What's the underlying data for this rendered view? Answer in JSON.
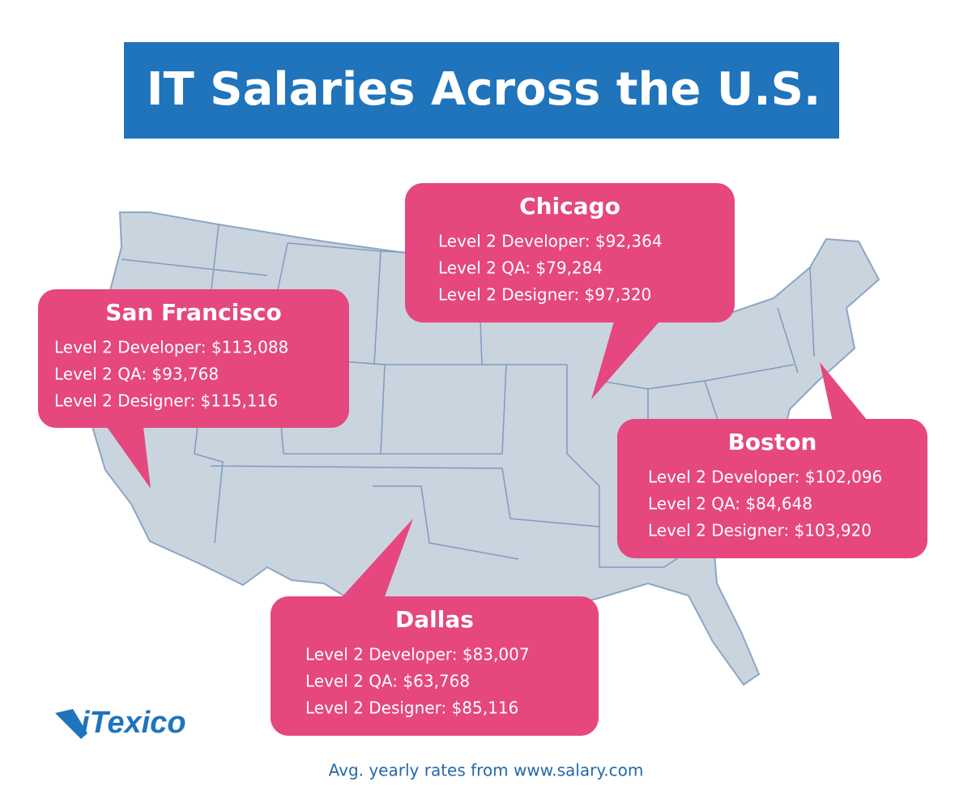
{
  "header": {
    "title": "IT Salaries Across the U.S."
  },
  "cities": [
    {
      "name": "San Francisco",
      "lines": [
        "Level 2 Developer: $113,088",
        "Level 2 QA: $93,768",
        "Level 2 Designer: $115,116"
      ]
    },
    {
      "name": "Chicago",
      "lines": [
        "Level 2 Developer: $92,364",
        "Level 2 QA: $79,284",
        "Level 2 Designer: $97,320"
      ]
    },
    {
      "name": "Boston",
      "lines": [
        "Level 2 Developer: $102,096",
        "Level 2 QA: $84,648",
        "Level 2 Designer: $103,920"
      ]
    },
    {
      "name": "Dallas",
      "lines": [
        "Level 2 Developer: $83,007",
        "Level 2 QA: $63,768",
        "Level 2 Designer: $85,116"
      ]
    }
  ],
  "logo": "iTexico",
  "footer": "Avg. yearly rates from www.salary.com"
}
